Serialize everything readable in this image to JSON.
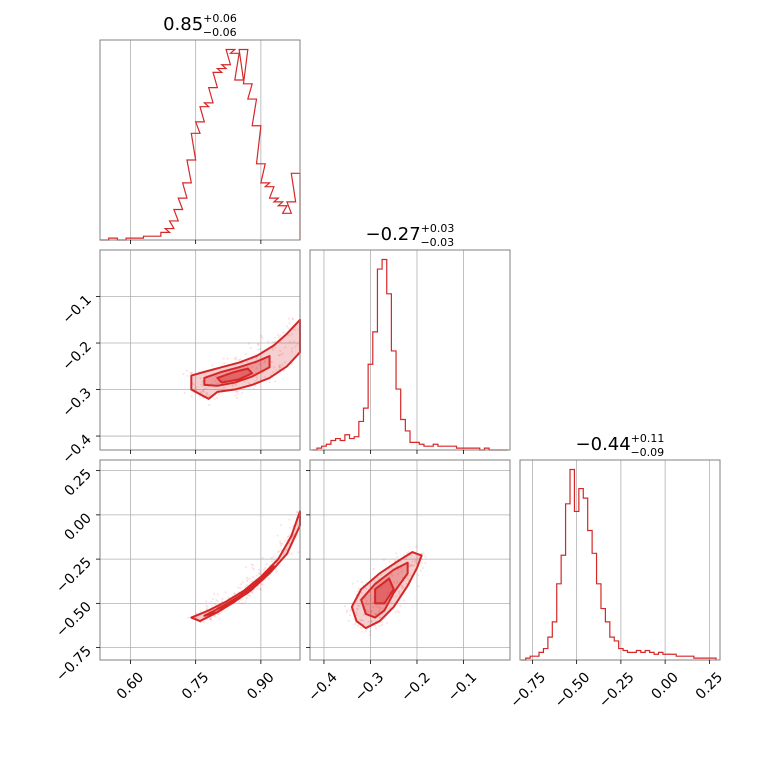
{
  "chart_data": {
    "type": "corner",
    "color": "#d62728",
    "parameters": [
      {
        "title": {
          "value": "0.85",
          "plus": "+0.06",
          "minus": "−0.06"
        },
        "range": [
          0.53,
          0.99
        ],
        "ticks": [
          0.6,
          0.75,
          0.9
        ],
        "tick_labels": [
          "0.60",
          "0.75",
          "0.90"
        ]
      },
      {
        "title": {
          "value": "−0.27",
          "plus": "+0.03",
          "minus": "−0.03"
        },
        "range": [
          -0.43,
          -0.0
        ],
        "ticks": [
          -0.4,
          -0.3,
          -0.2,
          -0.1
        ],
        "tick_labels": [
          "−0.4",
          "−0.3",
          "−0.2",
          "−0.1"
        ]
      },
      {
        "title": {
          "value": "−0.44",
          "plus": "+0.11",
          "minus": "−0.09"
        },
        "range": [
          -0.82,
          0.31
        ],
        "ticks": [
          -0.75,
          -0.5,
          -0.25,
          0.0,
          0.25
        ],
        "tick_labels": [
          "−0.75",
          "−0.50",
          "−0.25",
          "0.00",
          "0.25"
        ]
      }
    ],
    "histograms": [
      {
        "param": 0,
        "x": [
          0.54,
          0.56,
          0.58,
          0.6,
          0.62,
          0.64,
          0.66,
          0.68,
          0.69,
          0.7,
          0.71,
          0.72,
          0.73,
          0.74,
          0.75,
          0.76,
          0.77,
          0.78,
          0.79,
          0.8,
          0.81,
          0.82,
          0.83,
          0.84,
          0.85,
          0.86,
          0.87,
          0.88,
          0.89,
          0.9,
          0.91,
          0.92,
          0.93,
          0.94,
          0.95,
          0.96,
          0.97,
          0.98
        ],
        "y": [
          0.0,
          0.01,
          0.0,
          0.01,
          0.01,
          0.02,
          0.02,
          0.04,
          0.06,
          0.1,
          0.16,
          0.22,
          0.3,
          0.42,
          0.56,
          0.62,
          0.7,
          0.72,
          0.8,
          0.88,
          0.9,
          0.92,
          1.0,
          0.98,
          0.84,
          1.0,
          0.82,
          0.74,
          0.6,
          0.4,
          0.3,
          0.28,
          0.22,
          0.2,
          0.18,
          0.14,
          0.2,
          0.35
        ],
        "ylim": [
          0,
          1.05
        ]
      },
      {
        "param": 1,
        "x": [
          -0.42,
          -0.41,
          -0.4,
          -0.39,
          -0.38,
          -0.37,
          -0.36,
          -0.35,
          -0.34,
          -0.33,
          -0.32,
          -0.31,
          -0.3,
          -0.29,
          -0.28,
          -0.27,
          -0.26,
          -0.25,
          -0.24,
          -0.23,
          -0.22,
          -0.21,
          -0.2,
          -0.19,
          -0.18,
          -0.17,
          -0.16,
          -0.15,
          -0.14,
          -0.13,
          -0.12,
          -0.11,
          -0.1,
          -0.09,
          -0.08,
          -0.07,
          -0.06,
          -0.05,
          -0.04,
          -0.03,
          -0.02,
          -0.01
        ],
        "y": [
          0.0,
          0.01,
          0.02,
          0.03,
          0.05,
          0.06,
          0.05,
          0.08,
          0.06,
          0.07,
          0.15,
          0.22,
          0.45,
          0.62,
          0.95,
          1.0,
          0.82,
          0.52,
          0.32,
          0.16,
          0.1,
          0.04,
          0.04,
          0.03,
          0.02,
          0.02,
          0.03,
          0.02,
          0.02,
          0.02,
          0.02,
          0.01,
          0.01,
          0.01,
          0.01,
          0.01,
          0.0,
          0.01,
          0.0,
          0.0,
          0.0,
          0.0
        ],
        "ylim": [
          0,
          1.05
        ]
      },
      {
        "param": 2,
        "x": [
          -0.8,
          -0.775,
          -0.75,
          -0.725,
          -0.7,
          -0.675,
          -0.65,
          -0.625,
          -0.6,
          -0.575,
          -0.55,
          -0.525,
          -0.5,
          -0.475,
          -0.45,
          -0.425,
          -0.4,
          -0.375,
          -0.35,
          -0.325,
          -0.3,
          -0.275,
          -0.25,
          -0.225,
          -0.2,
          -0.175,
          -0.15,
          -0.125,
          -0.1,
          -0.075,
          -0.05,
          -0.025,
          0.0,
          0.025,
          0.05,
          0.075,
          0.1,
          0.125,
          0.15,
          0.175,
          0.2,
          0.225,
          0.25,
          0.275
        ],
        "y": [
          0.0,
          0.01,
          0.02,
          0.02,
          0.04,
          0.06,
          0.12,
          0.2,
          0.4,
          0.55,
          0.82,
          1.0,
          0.78,
          0.9,
          0.85,
          0.68,
          0.56,
          0.4,
          0.27,
          0.2,
          0.12,
          0.1,
          0.06,
          0.05,
          0.04,
          0.04,
          0.05,
          0.04,
          0.05,
          0.04,
          0.03,
          0.04,
          0.03,
          0.03,
          0.03,
          0.02,
          0.02,
          0.02,
          0.02,
          0.01,
          0.01,
          0.01,
          0.01,
          0.01
        ],
        "ylim": [
          0,
          1.05
        ]
      }
    ],
    "contours": [
      {
        "x_param": 0,
        "y_param": 1,
        "levels": [
          [
            [
              0.74,
              -0.27
            ],
            [
              0.77,
              -0.262
            ],
            [
              0.81,
              -0.252
            ],
            [
              0.85,
              -0.242
            ],
            [
              0.89,
              -0.228
            ],
            [
              0.93,
              -0.205
            ],
            [
              0.96,
              -0.18
            ],
            [
              0.99,
              -0.15
            ],
            [
              0.99,
              -0.22
            ],
            [
              0.96,
              -0.25
            ],
            [
              0.92,
              -0.275
            ],
            [
              0.88,
              -0.29
            ],
            [
              0.84,
              -0.3
            ],
            [
              0.8,
              -0.305
            ],
            [
              0.78,
              -0.32
            ],
            [
              0.76,
              -0.31
            ],
            [
              0.74,
              -0.3
            ]
          ],
          [
            [
              0.77,
              -0.275
            ],
            [
              0.81,
              -0.262
            ],
            [
              0.85,
              -0.252
            ],
            [
              0.89,
              -0.24
            ],
            [
              0.92,
              -0.228
            ],
            [
              0.92,
              -0.252
            ],
            [
              0.88,
              -0.272
            ],
            [
              0.84,
              -0.285
            ],
            [
              0.8,
              -0.292
            ],
            [
              0.77,
              -0.29
            ]
          ],
          [
            [
              0.8,
              -0.275
            ],
            [
              0.84,
              -0.262
            ],
            [
              0.87,
              -0.255
            ],
            [
              0.88,
              -0.265
            ],
            [
              0.85,
              -0.278
            ],
            [
              0.81,
              -0.285
            ]
          ]
        ]
      },
      {
        "x_param": 0,
        "y_param": 2,
        "levels": [
          [
            [
              0.74,
              -0.58
            ],
            [
              0.78,
              -0.54
            ],
            [
              0.82,
              -0.49
            ],
            [
              0.86,
              -0.43
            ],
            [
              0.9,
              -0.35
            ],
            [
              0.94,
              -0.25
            ],
            [
              0.97,
              -0.12
            ],
            [
              0.99,
              0.02
            ],
            [
              0.99,
              -0.06
            ],
            [
              0.96,
              -0.22
            ],
            [
              0.92,
              -0.33
            ],
            [
              0.88,
              -0.42
            ],
            [
              0.84,
              -0.49
            ],
            [
              0.8,
              -0.55
            ],
            [
              0.76,
              -0.6
            ]
          ],
          [
            [
              0.77,
              -0.57
            ],
            [
              0.81,
              -0.52
            ],
            [
              0.85,
              -0.46
            ],
            [
              0.89,
              -0.38
            ],
            [
              0.93,
              -0.29
            ],
            [
              0.92,
              -0.32
            ],
            [
              0.88,
              -0.41
            ],
            [
              0.84,
              -0.48
            ],
            [
              0.8,
              -0.55
            ]
          ],
          [
            [
              0.8,
              -0.53
            ],
            [
              0.84,
              -0.48
            ],
            [
              0.88,
              -0.42
            ],
            [
              0.87,
              -0.44
            ],
            [
              0.83,
              -0.5
            ]
          ]
        ]
      },
      {
        "x_param": 1,
        "y_param": 2,
        "levels": [
          [
            [
              -0.33,
              -0.6
            ],
            [
              -0.34,
              -0.52
            ],
            [
              -0.32,
              -0.42
            ],
            [
              -0.28,
              -0.33
            ],
            [
              -0.24,
              -0.26
            ],
            [
              -0.21,
              -0.21
            ],
            [
              -0.19,
              -0.23
            ],
            [
              -0.2,
              -0.3
            ],
            [
              -0.22,
              -0.4
            ],
            [
              -0.25,
              -0.52
            ],
            [
              -0.28,
              -0.6
            ],
            [
              -0.31,
              -0.64
            ]
          ],
          [
            [
              -0.31,
              -0.56
            ],
            [
              -0.32,
              -0.48
            ],
            [
              -0.29,
              -0.39
            ],
            [
              -0.25,
              -0.31
            ],
            [
              -0.22,
              -0.27
            ],
            [
              -0.22,
              -0.33
            ],
            [
              -0.25,
              -0.44
            ],
            [
              -0.27,
              -0.54
            ],
            [
              -0.29,
              -0.58
            ]
          ],
          [
            [
              -0.29,
              -0.5
            ],
            [
              -0.29,
              -0.42
            ],
            [
              -0.26,
              -0.36
            ],
            [
              -0.25,
              -0.42
            ],
            [
              -0.27,
              -0.5
            ]
          ]
        ]
      }
    ]
  }
}
